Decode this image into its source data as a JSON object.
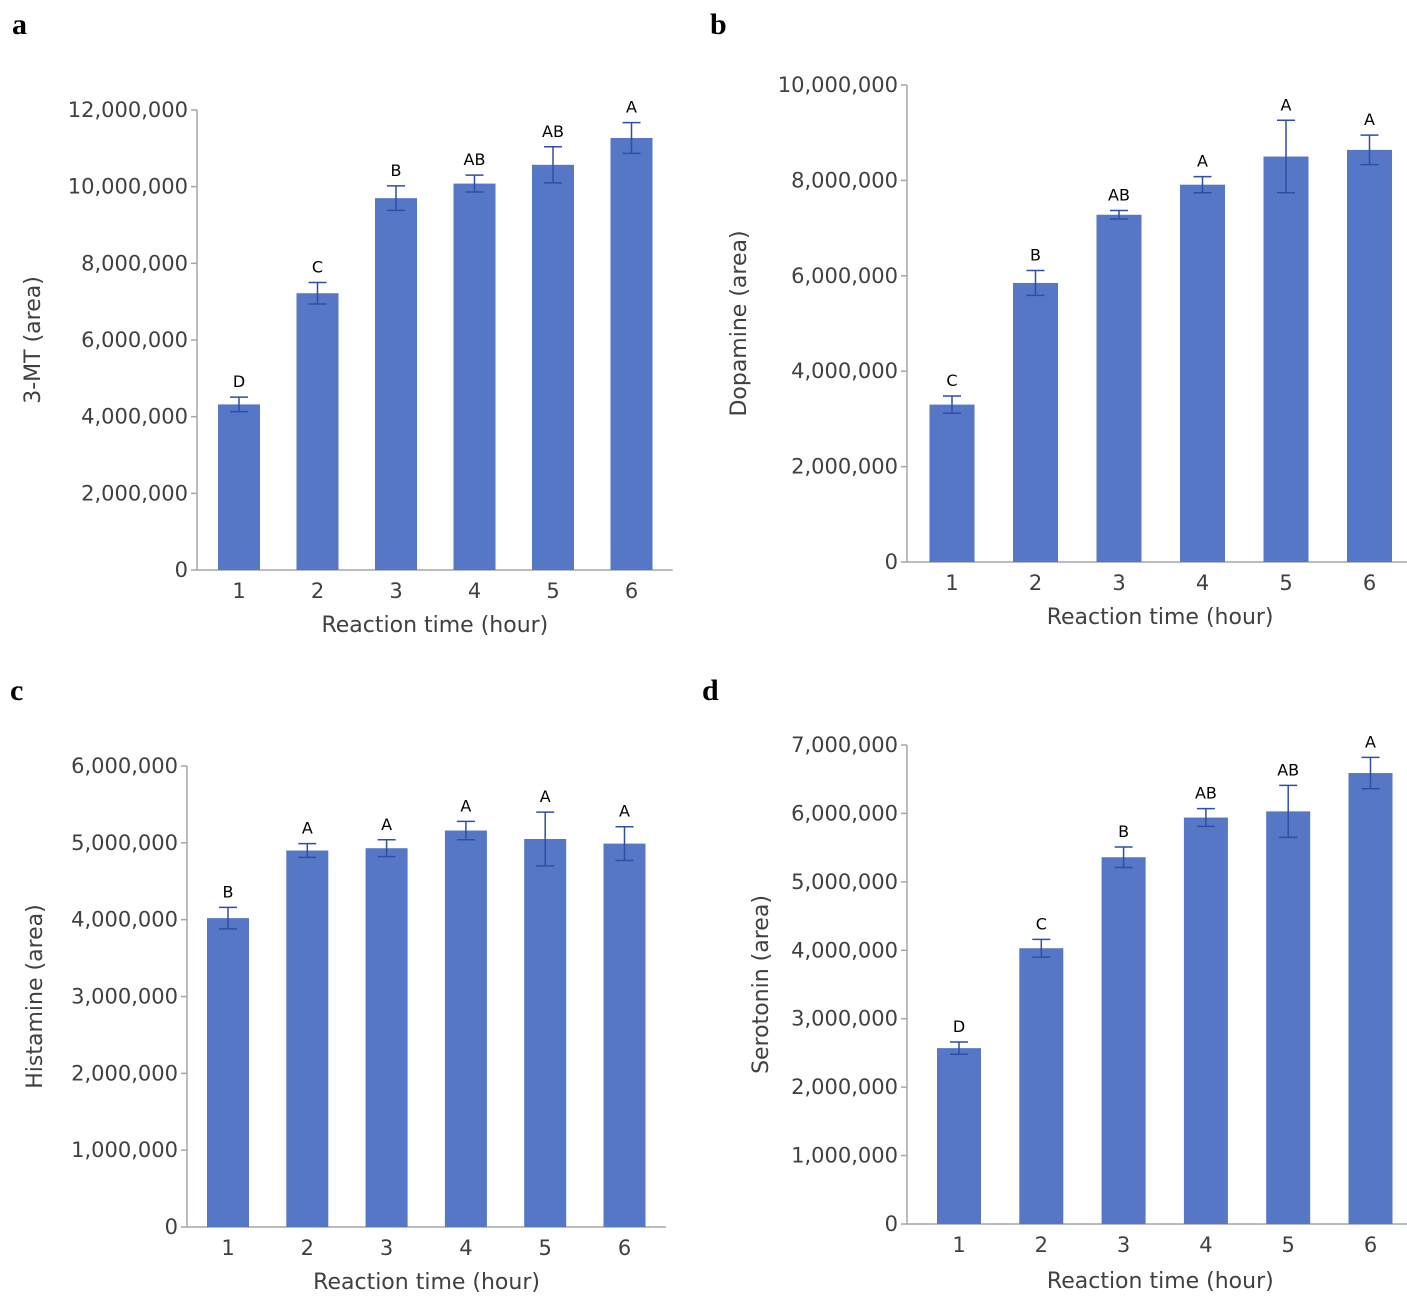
{
  "chart_data": [
    {
      "panel": "a",
      "type": "bar",
      "xlabel": "Reaction time (hour)",
      "ylabel": "3-MT (area)",
      "categories": [
        "1",
        "2",
        "3",
        "4",
        "5",
        "6"
      ],
      "values": [
        4320000,
        7220000,
        9700000,
        10080000,
        10570000,
        11270000
      ],
      "errors": [
        190000,
        280000,
        320000,
        220000,
        470000,
        400000
      ],
      "labels": [
        "D",
        "C",
        "B",
        "AB",
        "AB",
        "A"
      ],
      "yticks": [
        "0",
        "2,000,000",
        "4,000,000",
        "6,000,000",
        "8,000,000",
        "10,000,000",
        "12,000,000"
      ],
      "ylim": [
        0,
        12000000
      ],
      "color": "#5577c5"
    },
    {
      "panel": "b",
      "type": "bar",
      "xlabel": "Reaction time (hour)",
      "ylabel": "Dopamine (area)",
      "categories": [
        "1",
        "2",
        "3",
        "4",
        "5",
        "6"
      ],
      "values": [
        3300000,
        5850000,
        7280000,
        7910000,
        8500000,
        8640000
      ],
      "errors": [
        180000,
        260000,
        90000,
        170000,
        760000,
        310000
      ],
      "labels": [
        "C",
        "B",
        "AB",
        "A",
        "A",
        "A"
      ],
      "yticks": [
        "0",
        "2,000,000",
        "4,000,000",
        "6,000,000",
        "8,000,000",
        "10,000,000"
      ],
      "ylim": [
        0,
        10000000
      ],
      "color": "#5577c5"
    },
    {
      "panel": "c",
      "type": "bar",
      "xlabel": "Reaction time (hour)",
      "ylabel": "Histamine (area)",
      "categories": [
        "1",
        "2",
        "3",
        "4",
        "5",
        "6"
      ],
      "values": [
        4020000,
        4900000,
        4930000,
        5160000,
        5050000,
        4990000
      ],
      "errors": [
        140000,
        90000,
        110000,
        120000,
        350000,
        220000
      ],
      "labels": [
        "B",
        "A",
        "A",
        "A",
        "A",
        "A"
      ],
      "yticks": [
        "0",
        "1,000,000",
        "2,000,000",
        "3,000,000",
        "4,000,000",
        "5,000,000",
        "6,000,000"
      ],
      "ylim": [
        0,
        6000000
      ],
      "color": "#5577c5"
    },
    {
      "panel": "d",
      "type": "bar",
      "xlabel": "Reaction time (hour)",
      "ylabel": "Serotonin (area)",
      "categories": [
        "1",
        "2",
        "3",
        "4",
        "5",
        "6"
      ],
      "values": [
        2570000,
        4030000,
        5360000,
        5940000,
        6030000,
        6590000
      ],
      "errors": [
        90000,
        130000,
        150000,
        130000,
        380000,
        230000
      ],
      "labels": [
        "D",
        "C",
        "B",
        "AB",
        "AB",
        "A"
      ],
      "yticks": [
        "0",
        "1,000,000",
        "2,000,000",
        "3,000,000",
        "4,000,000",
        "5,000,000",
        "6,000,000",
        "7,000,000"
      ],
      "ylim": [
        0,
        7000000
      ],
      "color": "#5577c5"
    }
  ]
}
